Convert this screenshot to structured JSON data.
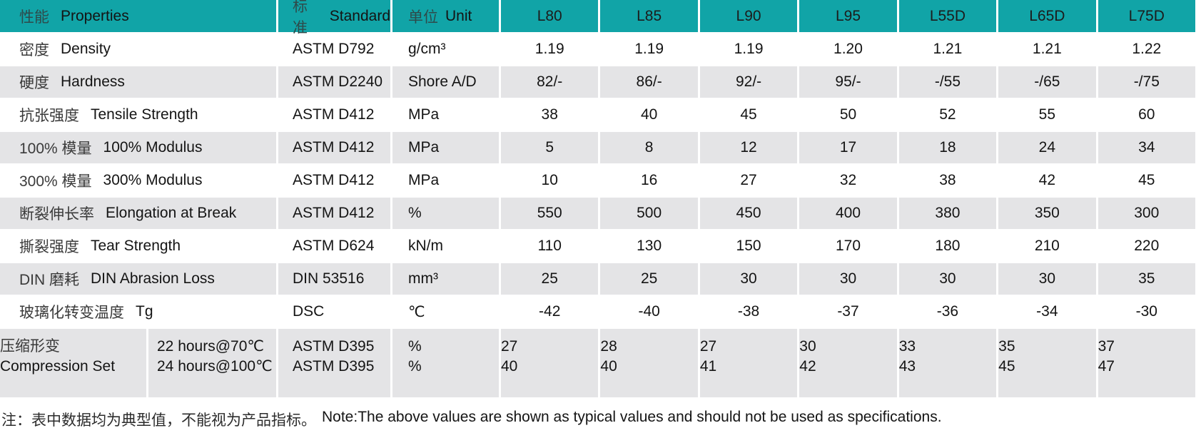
{
  "colors": {
    "teal": "#11A4A7",
    "row_gray": "#E4E4E6"
  },
  "table": {
    "header": {
      "properties_zh": "性能",
      "properties_en": "Properties",
      "standard_zh": "标准",
      "standard_en": "Standard",
      "unit_zh": "单位",
      "unit_en": "Unit",
      "grades": [
        "L80",
        "L85",
        "L90",
        "L95",
        "L55D",
        "L65D",
        "L75D"
      ]
    },
    "rows": [
      {
        "zh": "密度",
        "en": "Density",
        "standard": "ASTM D792",
        "unit": "g/cm³",
        "values": [
          "1.19",
          "1.19",
          "1.19",
          "1.20",
          "1.21",
          "1.21",
          "1.22"
        ]
      },
      {
        "zh": "硬度",
        "en": "Hardness",
        "standard": "ASTM D2240",
        "unit": "Shore A/D",
        "values": [
          "82/-",
          "86/-",
          "92/-",
          "95/-",
          "-/55",
          "-/65",
          "-/75"
        ]
      },
      {
        "zh": "抗张强度",
        "en": "Tensile Strength",
        "standard": "ASTM D412",
        "unit": "MPa",
        "values": [
          "38",
          "40",
          "45",
          "50",
          "52",
          "55",
          "60"
        ]
      },
      {
        "zh": "100% 模量",
        "en": "100% Modulus",
        "standard": "ASTM D412",
        "unit": "MPa",
        "values": [
          "5",
          "8",
          "12",
          "17",
          "18",
          "24",
          "34"
        ]
      },
      {
        "zh": "300% 模量",
        "en": "300% Modulus",
        "standard": "ASTM D412",
        "unit": "MPa",
        "values": [
          "10",
          "16",
          "27",
          "32",
          "38",
          "42",
          "45"
        ]
      },
      {
        "zh": "断裂伸长率",
        "en": "Elongation at Break",
        "standard": "ASTM D412",
        "unit": "%",
        "values": [
          "550",
          "500",
          "450",
          "400",
          "380",
          "350",
          "300"
        ]
      },
      {
        "zh": "撕裂强度",
        "en": "Tear Strength",
        "standard": "ASTM D624",
        "unit": "kN/m",
        "values": [
          "110",
          "130",
          "150",
          "170",
          "180",
          "210",
          "220"
        ]
      },
      {
        "zh": "DIN 磨耗",
        "en": "DIN Abrasion Loss",
        "standard": "DIN 53516",
        "unit": "mm³",
        "values": [
          "25",
          "25",
          "30",
          "30",
          "30",
          "30",
          "35"
        ]
      },
      {
        "zh": "玻璃化转变温度",
        "en": "Tg",
        "standard": "DSC",
        "unit": "℃",
        "values": [
          "-42",
          "-40",
          "-38",
          "-37",
          "-36",
          "-34",
          "-30"
        ]
      }
    ],
    "compression": {
      "zh": "压缩形变",
      "en": "Compression Set",
      "conditions": [
        "22 hours@70℃",
        "24 hours@100℃"
      ],
      "standards": [
        "ASTM D395",
        "ASTM D395"
      ],
      "units": [
        "%",
        "%"
      ],
      "values": [
        [
          "27",
          "40"
        ],
        [
          "28",
          "40"
        ],
        [
          "27",
          "41"
        ],
        [
          "30",
          "42"
        ],
        [
          "33",
          "43"
        ],
        [
          "35",
          "45"
        ],
        [
          "37",
          "47"
        ]
      ]
    }
  },
  "note": {
    "zh": "注：表中数据均为典型值，不能视为产品指标。",
    "en": "Note:The above values are shown as typical values and should not be used as specifications."
  }
}
